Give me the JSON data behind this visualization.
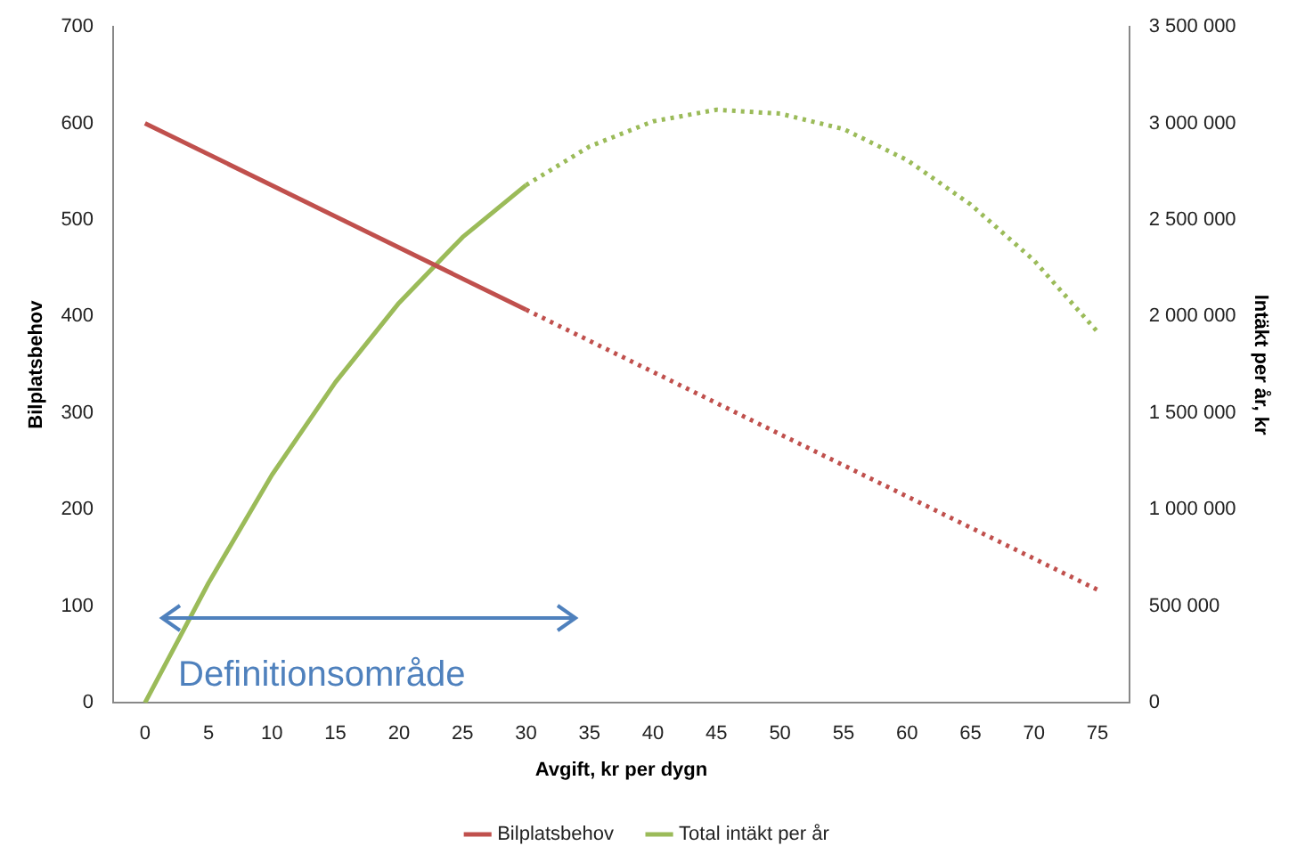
{
  "chart_data": {
    "type": "line",
    "xlabel": "Avgift, kr per dygn",
    "ylabel": "Bilplatsbehov",
    "y2label": "Intäkt per år, kr",
    "series": [
      {
        "name": "Bilplatsbehov",
        "color": "#c0504d",
        "x": [
          0,
          30
        ],
        "values": [
          600,
          407
        ],
        "line_style": "solid"
      },
      {
        "color": "#c0504d",
        "x": [
          30,
          75
        ],
        "values": [
          407,
          117
        ],
        "line_style": "dotted"
      },
      {
        "name": "Total intäkt per år",
        "color": "#9bbb59",
        "axis": "y2",
        "x": [
          0,
          5,
          10,
          15,
          20,
          25,
          30
        ],
        "values": [
          0,
          620000,
          1180000,
          1660000,
          2070000,
          2410000,
          2680000
        ],
        "line_style": "solid"
      },
      {
        "color": "#9bbb59",
        "axis": "y2",
        "x": [
          30,
          35,
          40,
          45,
          50,
          55,
          60,
          65,
          70,
          75
        ],
        "values": [
          2680000,
          2880000,
          3010000,
          3070000,
          3050000,
          2970000,
          2810000,
          2580000,
          2290000,
          1920000
        ],
        "line_style": "dotted"
      }
    ],
    "xlim": [
      -2.5,
      77.5
    ],
    "xticks": [
      0,
      5,
      10,
      15,
      20,
      25,
      30,
      35,
      40,
      45,
      50,
      55,
      60,
      65,
      70,
      75
    ],
    "ylim": [
      0,
      700
    ],
    "yticks": [
      0,
      100,
      200,
      300,
      400,
      500,
      600,
      700
    ],
    "y2lim": [
      0,
      3500000
    ],
    "y2ticks": [
      0,
      {
        "value": 500000,
        "label": "500 000"
      },
      {
        "value": 1000000,
        "label": "1 000 000"
      },
      {
        "value": 1500000,
        "label": "1 500 000"
      },
      {
        "value": 2000000,
        "label": "2 000 000"
      },
      {
        "value": 2500000,
        "label": "2 500 000"
      },
      {
        "value": 3000000,
        "label": "3 000 000"
      },
      {
        "value": 3500000,
        "label": "3 500 000"
      }
    ],
    "annotations": [
      "Definitionsområde"
    ],
    "grid": false,
    "legend": "bottom",
    "marker": "none"
  }
}
